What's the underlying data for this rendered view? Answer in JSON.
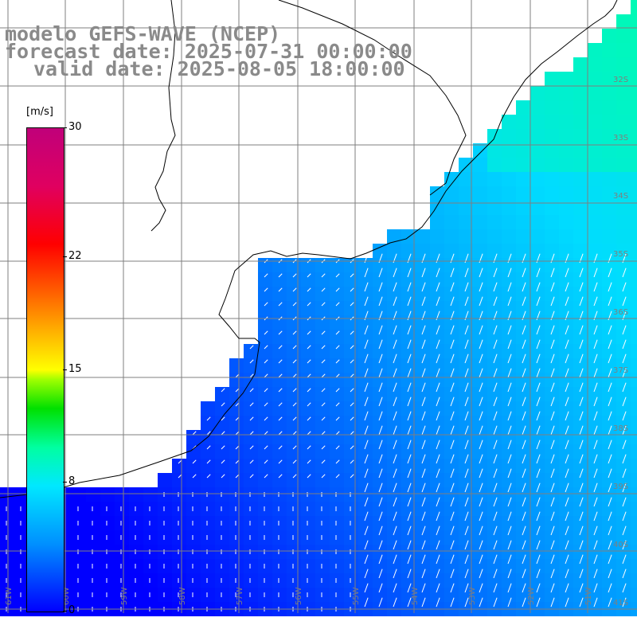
{
  "title": {
    "line1": "modelo GEFS-WAVE (NCEP)",
    "line2": "forecast date: 2025-07-31 00:00:00",
    "line3": "valid date: 2025-08-05 18:00:00"
  },
  "colorbar": {
    "unit": "[m/s]",
    "min": 0,
    "max": 30,
    "ticks": [
      {
        "label": "30",
        "value": 30
      },
      {
        "label": "22",
        "value": 22
      },
      {
        "label": "15",
        "value": 15
      },
      {
        "label": "8",
        "value": 8
      },
      {
        "label": "0",
        "value": 0
      }
    ],
    "colors": [
      "#0000ff",
      "#0090ff",
      "#00e8ff",
      "#00ffa0",
      "#00e000",
      "#ffff00",
      "#ff6000",
      "#ff0000",
      "#c0007a"
    ]
  },
  "map": {
    "lat_labels": [
      "32S",
      "33S",
      "34S",
      "35S",
      "36S",
      "37S",
      "38S",
      "39S",
      "40S",
      "41S"
    ],
    "lon_labels": [
      "61W",
      "60W",
      "59W",
      "58W",
      "57W",
      "56W",
      "55W",
      "54W",
      "53W",
      "52W",
      "51W"
    ],
    "land_color": "#ffffff",
    "grid_color": "#7f7f7f",
    "coast_color": "#000000",
    "wind_direction_note_color": "#ffffff"
  }
}
